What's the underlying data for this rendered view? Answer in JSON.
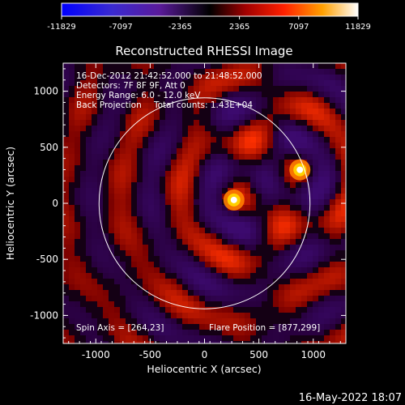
{
  "colorbar": {
    "ticks": [
      "-11829",
      "-7097",
      "-2365",
      "2365",
      "7097",
      "11829"
    ],
    "min": -11829,
    "max": 11829
  },
  "chart_data": {
    "type": "heatmap",
    "title": "Reconstructed RHESSI Image",
    "xlabel": "Heliocentric X (arcsec)",
    "ylabel": "Heliocentric Y (arcsec)",
    "xlim": [
      -1300,
      1300
    ],
    "ylim": [
      -1250,
      1250
    ],
    "x_ticks": [
      "-1000",
      "-500",
      "0",
      "500",
      "1000"
    ],
    "y_ticks": [
      "1000",
      "500",
      "0",
      "-500",
      "-1000"
    ],
    "x_tick_values": [
      -1000,
      -500,
      0,
      500,
      1000
    ],
    "y_tick_values": [
      1000,
      500,
      0,
      -500,
      -1000
    ],
    "solar_disk_radius": 970,
    "sources": [
      {
        "x": 877,
        "y": 299,
        "peak": 11829
      },
      {
        "x": 270,
        "y": 30,
        "peak": 11000
      }
    ],
    "info_lines": [
      "16-Dec-2012 21:42:52.000 to 21:48:52.000",
      "Detectors: 7F 8F 9F, Att 0",
      "Energy Range: 6.0 - 12.0 keV",
      "Back Projection",
      "Total counts: 1.43E+04"
    ],
    "spin_axis": "Spin Axis = [264,23]",
    "flare_position": "Flare Position = [877,299]",
    "colors": {
      "negative": "#3c0a6e",
      "positive": "#ff3000",
      "peak": "#ffffff",
      "disk": "#ffffff"
    }
  },
  "footer_date": "16-May-2022 18:07"
}
